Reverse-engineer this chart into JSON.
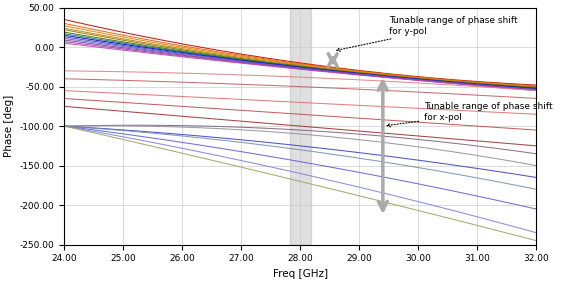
{
  "freq_start": 24.0,
  "freq_end": 32.0,
  "phase_min": -250.0,
  "phase_max": 50.0,
  "xlabel": "Freq [GHz]",
  "ylabel": "Phase [deg]",
  "xticks": [
    24.0,
    25.0,
    26.0,
    27.0,
    28.0,
    29.0,
    30.0,
    31.0,
    32.0
  ],
  "yticks": [
    50.0,
    0.0,
    -50.0,
    -100.0,
    -150.0,
    -200.0,
    -250.0
  ],
  "shade_x1": 27.82,
  "shade_x2": 28.18,
  "annotation_ypol_text": "Tunable range of phase shift\nfor y-pol",
  "annotation_xpol_text": "Tunable range of phase shift\nfor x-pol",
  "background_color": "#ffffff",
  "grid_color": "#cccccc",
  "y_pol_lines": [
    {
      "phase_24": 35,
      "phase_28": -20,
      "phase_32": -48,
      "color": "#c00000"
    },
    {
      "phase_24": 30,
      "phase_28": -21,
      "phase_32": -49,
      "color": "#e06000"
    },
    {
      "phase_24": 27,
      "phase_28": -22,
      "phase_32": -50,
      "color": "#e08000"
    },
    {
      "phase_24": 24,
      "phase_28": -23,
      "phase_32": -50.5,
      "color": "#c08000"
    },
    {
      "phase_24": 22,
      "phase_28": -24,
      "phase_32": -51,
      "color": "#808000"
    },
    {
      "phase_24": 19,
      "phase_28": -24.5,
      "phase_32": -51.5,
      "color": "#606000"
    },
    {
      "phase_24": 17,
      "phase_28": -25,
      "phase_32": -52,
      "color": "#008060"
    },
    {
      "phase_24": 15,
      "phase_28": -25.5,
      "phase_32": -52.5,
      "color": "#0000c0"
    },
    {
      "phase_24": 13,
      "phase_28": -26,
      "phase_32": -53,
      "color": "#4040c0"
    },
    {
      "phase_24": 11,
      "phase_28": -26.5,
      "phase_32": -53.5,
      "color": "#6060c0"
    },
    {
      "phase_24": 9,
      "phase_28": -27,
      "phase_32": -54,
      "color": "#8040a0"
    },
    {
      "phase_24": 7,
      "phase_28": -27.5,
      "phase_32": -54.5,
      "color": "#a040a0"
    },
    {
      "phase_24": 5,
      "phase_28": -28,
      "phase_32": -55,
      "color": "#c040c0"
    }
  ],
  "x_pol_lines": [
    {
      "phase_24": -30,
      "phase_28": -38,
      "phase_32": -55,
      "color": "#e08080"
    },
    {
      "phase_24": -40,
      "phase_28": -50,
      "phase_32": -65,
      "color": "#c06060"
    },
    {
      "phase_24": -55,
      "phase_28": -70,
      "phase_32": -85,
      "color": "#e07070"
    },
    {
      "phase_24": -65,
      "phase_28": -85,
      "phase_32": -105,
      "color": "#c05050"
    },
    {
      "phase_24": -75,
      "phase_28": -100,
      "phase_32": -125,
      "color": "#a03030"
    },
    {
      "phase_24": -100,
      "phase_28": -105,
      "phase_32": -135,
      "color": "#806080"
    },
    {
      "phase_24": -100,
      "phase_28": -125,
      "phase_32": -165,
      "color": "#4040c0"
    },
    {
      "phase_24": -100,
      "phase_28": -145,
      "phase_32": -205,
      "color": "#6060d0"
    },
    {
      "phase_24": -100,
      "phase_28": -160,
      "phase_32": -235,
      "color": "#8080e0"
    },
    {
      "phase_24": -100,
      "phase_28": -110,
      "phase_32": -150,
      "color": "#9090a0"
    },
    {
      "phase_24": -100,
      "phase_28": -130,
      "phase_32": -180,
      "color": "#7090b0"
    },
    {
      "phase_24": -100,
      "phase_28": -170,
      "phase_32": -245,
      "color": "#a0a060"
    }
  ]
}
